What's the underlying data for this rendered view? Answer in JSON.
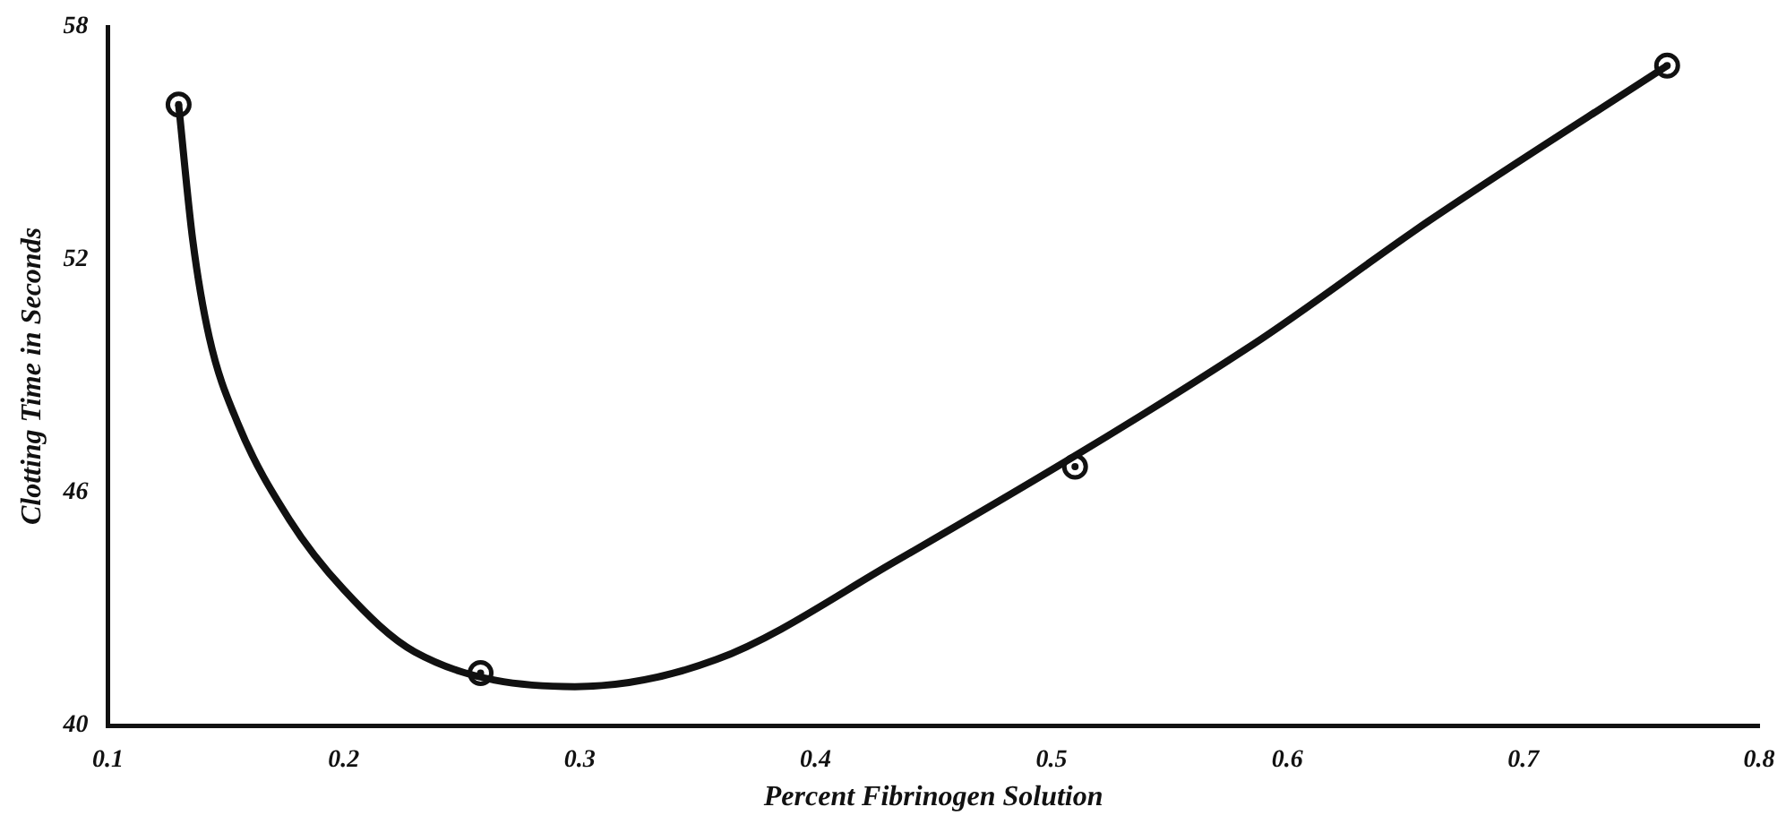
{
  "chart_data": {
    "type": "scatter",
    "xlabel": "Percent Fibrinogen Solution",
    "ylabel": "Clotting Time in Seconds",
    "xlim": [
      0.1,
      0.8
    ],
    "ylim": [
      40,
      58
    ],
    "xticks": [
      0.1,
      0.2,
      0.3,
      0.4,
      0.5,
      0.6,
      0.7,
      0.8
    ],
    "yticks": [
      40,
      46,
      52,
      58
    ],
    "grid": false,
    "legend": false,
    "series": [
      {
        "type": "line",
        "color": "#111111",
        "marker": "none",
        "line_style": "solid",
        "x": [
          0.13,
          0.136,
          0.143,
          0.155,
          0.177,
          0.2,
          0.23,
          0.298,
          0.358,
          0.433,
          0.585,
          0.66,
          0.761
        ],
        "values": [
          56.0,
          52.5,
          50.0,
          47.8,
          45.3,
          43.5,
          41.9,
          41.0,
          41.7,
          44.2,
          49.8,
          53.0,
          57.0
        ]
      },
      {
        "type": "scatter",
        "color": "#111111",
        "marker": "circle",
        "x": [
          0.13,
          0.258,
          0.51,
          0.761
        ],
        "values": [
          56.0,
          41.35,
          46.67,
          57.0
        ]
      }
    ]
  }
}
